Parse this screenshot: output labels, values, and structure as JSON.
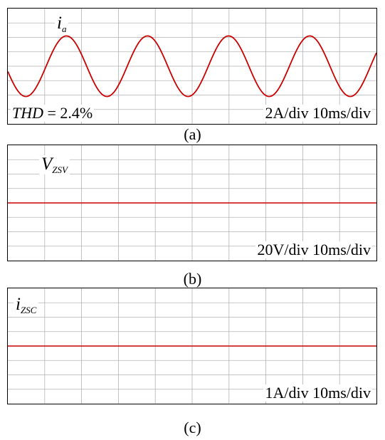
{
  "chart_data": [
    {
      "type": "line",
      "panel": "a",
      "signal_label": {
        "main": "i",
        "sub": "a"
      },
      "scale_text": "2A/div 10ms/div",
      "thd_label": "THD",
      "thd_value": "= 2.4%",
      "caption": "(a)",
      "grid": {
        "on": true,
        "x_divisions": 10,
        "y_divisions": 8
      },
      "x_unit": "ms",
      "ms_per_div": 10,
      "amp_per_div": 2,
      "series": [
        {
          "waveform": "sine",
          "amplitude_div": 2.1,
          "offset_div": 0,
          "period_ms": 22,
          "phase_deg": 190,
          "color": "#cc0000"
        }
      ]
    },
    {
      "type": "line",
      "panel": "b",
      "signal_label": {
        "main": "V",
        "sub": "ZSV"
      },
      "scale_text": "20V/div 10ms/div",
      "caption": "(b)",
      "grid": {
        "on": true,
        "x_divisions": 10,
        "y_divisions": 8
      },
      "series": [
        {
          "waveform": "constant",
          "value": 0,
          "color": "#cc0000"
        }
      ]
    },
    {
      "type": "line",
      "panel": "c",
      "signal_label": {
        "main": "i",
        "sub": "ZSC"
      },
      "scale_text": "1A/div 10ms/div",
      "caption": "(c)",
      "grid": {
        "on": true,
        "x_divisions": 10,
        "y_divisions": 8
      },
      "series": [
        {
          "waveform": "constant",
          "value": 0,
          "color": "#cc0000"
        }
      ]
    }
  ],
  "colors": {
    "trace": "#cc0000",
    "grid": "#b3b3b3",
    "border": "#000000"
  }
}
